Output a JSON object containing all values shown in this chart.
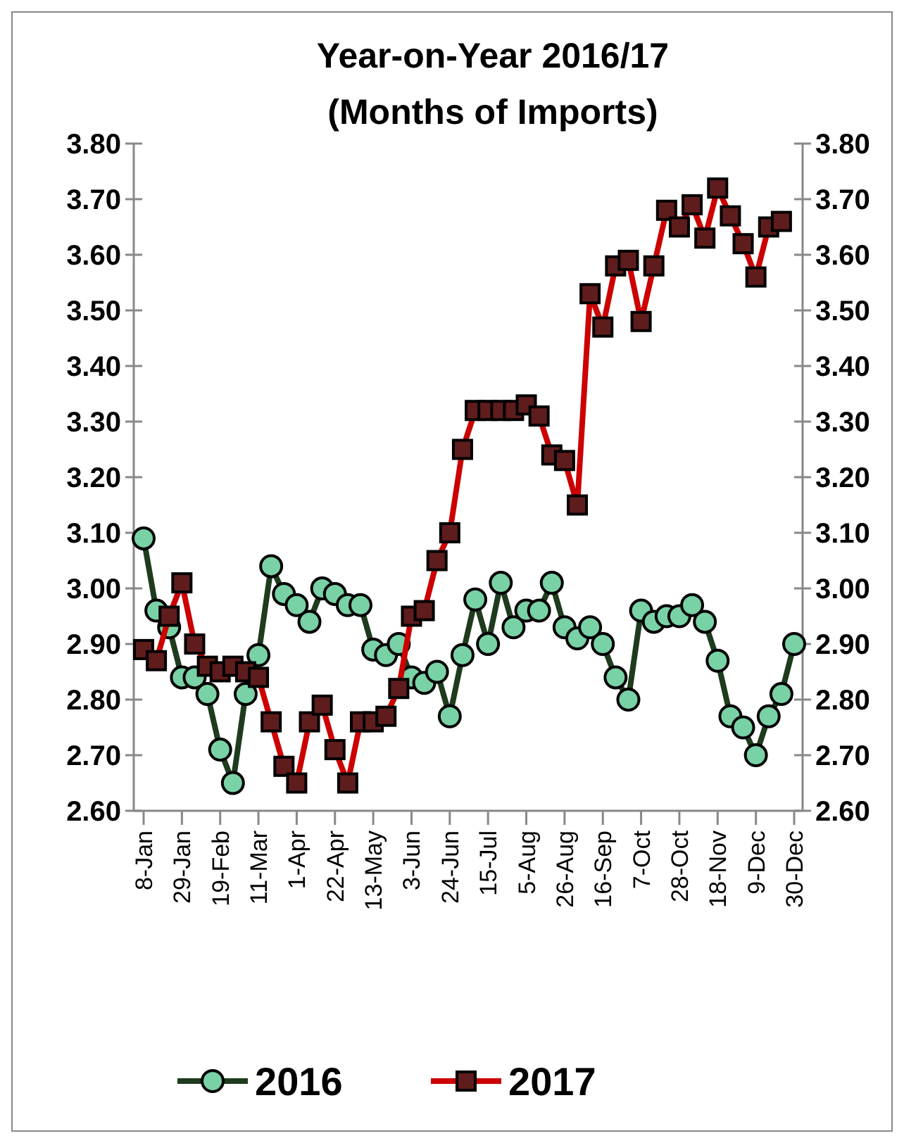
{
  "chart_data": {
    "type": "line",
    "title": "Year-on-Year 2016/17",
    "subtitle": "(Months of Imports)",
    "categories": [
      "8-Jan",
      null,
      null,
      "29-Jan",
      null,
      null,
      "19-Feb",
      null,
      null,
      "11-Mar",
      null,
      null,
      "1-Apr",
      null,
      null,
      "22-Apr",
      null,
      null,
      "13-May",
      null,
      null,
      "3-Jun",
      null,
      null,
      "24-Jun",
      null,
      null,
      "15-Jul",
      null,
      null,
      "5-Aug",
      null,
      null,
      "26-Aug",
      null,
      null,
      "16-Sep",
      null,
      null,
      "7-Oct",
      null,
      null,
      "28-Oct",
      null,
      null,
      "18-Nov",
      null,
      null,
      "9-Dec",
      null,
      null,
      "30-Dec"
    ],
    "series": [
      {
        "name": "2016",
        "color": "#1e3b1e",
        "marker": "circle",
        "values": [
          3.09,
          2.96,
          2.93,
          2.84,
          2.84,
          2.81,
          2.71,
          2.65,
          2.81,
          2.88,
          3.04,
          2.99,
          2.97,
          2.94,
          3.0,
          2.99,
          2.97,
          2.97,
          2.89,
          2.88,
          2.9,
          2.84,
          2.83,
          2.85,
          2.77,
          2.88,
          2.98,
          2.9,
          3.01,
          2.93,
          2.96,
          2.96,
          3.01,
          2.93,
          2.91,
          2.93,
          2.9,
          2.84,
          2.8,
          2.96,
          2.94,
          2.95,
          2.95,
          2.97,
          2.94,
          2.87,
          2.77,
          2.75,
          2.7,
          2.77,
          2.81,
          2.9
        ]
      },
      {
        "name": "2017",
        "color": "#cc0000",
        "marker": "square",
        "values": [
          2.89,
          2.87,
          2.95,
          3.01,
          2.9,
          2.86,
          2.85,
          2.86,
          2.85,
          2.84,
          2.76,
          2.68,
          2.65,
          2.76,
          2.79,
          2.71,
          2.65,
          2.76,
          2.76,
          2.77,
          2.82,
          2.95,
          2.96,
          3.05,
          3.1,
          3.25,
          3.32,
          3.32,
          3.32,
          3.32,
          3.33,
          3.31,
          3.24,
          3.23,
          3.15,
          3.53,
          3.47,
          3.58,
          3.59,
          3.48,
          3.58,
          3.68,
          3.65,
          3.69,
          3.63,
          3.72,
          3.67,
          3.62,
          3.56,
          3.65,
          3.66,
          null
        ]
      }
    ],
    "ylim": [
      2.6,
      3.8
    ],
    "yticks": [
      {
        "value": 2.6,
        "label": "2.60"
      },
      {
        "value": 2.7,
        "label": "2.70"
      },
      {
        "value": 2.8,
        "label": "2.80"
      },
      {
        "value": 2.9,
        "label": "2.90"
      },
      {
        "value": 3.0,
        "label": "3.00"
      },
      {
        "value": 3.1,
        "label": "3.10"
      },
      {
        "value": 3.2,
        "label": "3.20"
      },
      {
        "value": 3.3,
        "label": "3.30"
      },
      {
        "value": 3.4,
        "label": "3.40"
      },
      {
        "value": 3.5,
        "label": "3.50"
      },
      {
        "value": 3.6,
        "label": "3.60"
      },
      {
        "value": 3.7,
        "label": "3.70"
      },
      {
        "value": 3.8,
        "label": "3.80"
      }
    ],
    "y2lim": [
      2.6,
      3.8
    ],
    "y2ticks": [
      {
        "value": 2.6,
        "label": "2.60"
      },
      {
        "value": 2.7,
        "label": "2.70"
      },
      {
        "value": 2.8,
        "label": "2.80"
      },
      {
        "value": 2.9,
        "label": "2.90"
      },
      {
        "value": 3.0,
        "label": "3.00"
      },
      {
        "value": 3.1,
        "label": "3.10"
      },
      {
        "value": 3.2,
        "label": "3.20"
      },
      {
        "value": 3.3,
        "label": "3.30"
      },
      {
        "value": 3.4,
        "label": "3.40"
      },
      {
        "value": 3.5,
        "label": "3.50"
      },
      {
        "value": 3.6,
        "label": "3.60"
      },
      {
        "value": 3.7,
        "label": "3.70"
      },
      {
        "value": 3.8,
        "label": "3.80"
      }
    ],
    "grid": false,
    "legend": "bottom"
  }
}
